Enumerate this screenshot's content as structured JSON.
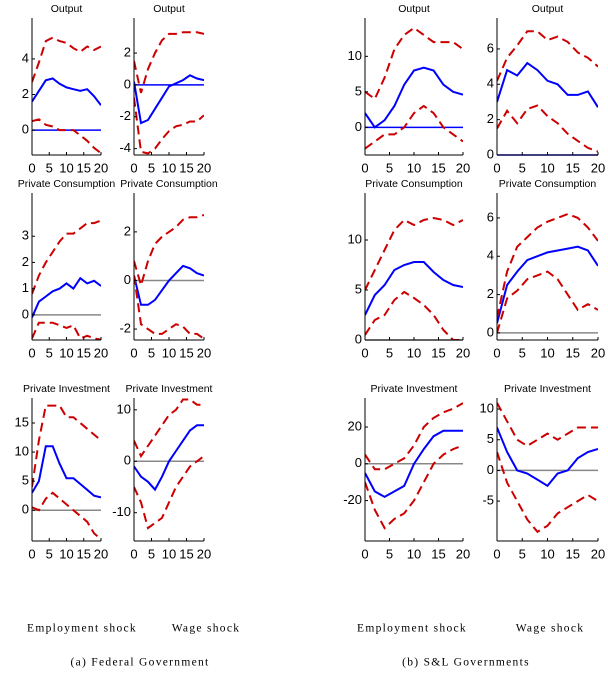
{
  "chart_data": [
    {
      "type": "line",
      "title": "Output",
      "x": [
        0,
        2,
        4,
        6,
        8,
        10,
        12,
        14,
        16,
        18,
        20
      ],
      "xlim": [
        0,
        20
      ],
      "xticks": [
        0,
        5,
        10,
        15,
        20
      ],
      "ylim": [
        -1.4,
        6.3
      ],
      "yticks": [
        0,
        2,
        4
      ],
      "reference_line": {
        "value": 0,
        "color": "#0000ff"
      },
      "series": [
        {
          "color": "#0000ff",
          "values": [
            1.6,
            2.2,
            2.8,
            2.9,
            2.6,
            2.4,
            2.3,
            2.2,
            2.3,
            1.9,
            1.4
          ]
        },
        {
          "color": "#cc0000",
          "dashed": true,
          "values": [
            2.7,
            3.8,
            5.0,
            5.2,
            5.0,
            4.9,
            4.6,
            4.4,
            4.7,
            4.5,
            4.7
          ]
        },
        {
          "color": "#cc0000",
          "dashed": true,
          "values": [
            0.5,
            0.6,
            0.3,
            0.2,
            0.0,
            0.0,
            0.0,
            -0.3,
            -0.6,
            -1.0,
            -1.3
          ]
        }
      ]
    },
    {
      "type": "line",
      "title": "Output",
      "x": [
        0,
        2,
        4,
        6,
        8,
        10,
        12,
        14,
        16,
        18,
        20
      ],
      "xlim": [
        0,
        20
      ],
      "xticks": [
        0,
        5,
        10,
        15,
        20
      ],
      "ylim": [
        -4.4,
        4.2
      ],
      "yticks": [
        -4,
        -2,
        0,
        2
      ],
      "reference_line": {
        "value": 0,
        "color": "#0000ff"
      },
      "series": [
        {
          "color": "#0000ff",
          "values": [
            0.2,
            -2.4,
            -2.2,
            -1.5,
            -0.8,
            -0.1,
            0.1,
            0.3,
            0.6,
            0.4,
            0.3
          ]
        },
        {
          "color": "#cc0000",
          "dashed": true,
          "values": [
            1.5,
            -0.5,
            1.0,
            2.0,
            2.8,
            3.2,
            3.2,
            3.3,
            3.3,
            3.3,
            3.2
          ]
        },
        {
          "color": "#cc0000",
          "dashed": true,
          "values": [
            -0.8,
            -4.2,
            -4.3,
            -4.0,
            -3.4,
            -2.9,
            -2.6,
            -2.5,
            -2.3,
            -2.3,
            -1.9
          ]
        }
      ]
    },
    {
      "type": "line",
      "title": "Private Consumption",
      "x": [
        0,
        2,
        4,
        6,
        8,
        10,
        12,
        14,
        16,
        18,
        20
      ],
      "xlim": [
        0,
        20
      ],
      "xticks": [
        0,
        5,
        10,
        15,
        20
      ],
      "ylim": [
        -0.96,
        4.65
      ],
      "yticks": [
        0,
        1,
        2,
        3
      ],
      "reference_line": {
        "value": 0,
        "color": "#888888"
      },
      "series": [
        {
          "color": "#0000ff",
          "values": [
            -0.1,
            0.5,
            0.7,
            0.9,
            1.0,
            1.2,
            1.0,
            1.4,
            1.2,
            1.3,
            1.1
          ]
        },
        {
          "color": "#cc0000",
          "dashed": true,
          "values": [
            0.8,
            1.5,
            2.0,
            2.4,
            2.8,
            3.1,
            3.1,
            3.3,
            3.5,
            3.5,
            3.6
          ]
        },
        {
          "color": "#cc0000",
          "dashed": true,
          "values": [
            -0.9,
            -0.3,
            -0.3,
            -0.3,
            -0.4,
            -0.5,
            -0.4,
            -0.9,
            -0.8,
            -0.9,
            -0.95
          ]
        }
      ]
    },
    {
      "type": "line",
      "title": "Private Consumption",
      "x": [
        0,
        2,
        4,
        6,
        8,
        10,
        12,
        14,
        16,
        18,
        20
      ],
      "xlim": [
        0,
        20
      ],
      "xticks": [
        0,
        5,
        10,
        15,
        20
      ],
      "ylim": [
        -2.45,
        3.6
      ],
      "yticks": [
        -2,
        0,
        2
      ],
      "reference_line": {
        "value": 0,
        "color": "#888888"
      },
      "series": [
        {
          "color": "#0000ff",
          "values": [
            0.2,
            -1.0,
            -1.0,
            -0.8,
            -0.4,
            0.0,
            0.3,
            0.6,
            0.5,
            0.3,
            0.2
          ]
        },
        {
          "color": "#cc0000",
          "dashed": true,
          "values": [
            0.8,
            -0.2,
            0.8,
            1.5,
            1.8,
            2.0,
            2.2,
            2.5,
            2.6,
            2.6,
            2.7
          ]
        },
        {
          "color": "#cc0000",
          "dashed": true,
          "values": [
            0.2,
            -1.8,
            -2.0,
            -2.2,
            -2.2,
            -2.0,
            -1.8,
            -1.9,
            -2.2,
            -2.2,
            -2.4
          ]
        }
      ]
    },
    {
      "type": "line",
      "title": "Private Investment",
      "x": [
        0,
        2,
        4,
        6,
        8,
        10,
        12,
        14,
        16,
        18,
        20
      ],
      "xlim": [
        0,
        20
      ],
      "xticks": [
        0,
        5,
        10,
        15,
        20
      ],
      "ylim": [
        -5.3,
        19.3
      ],
      "yticks": [
        0,
        5,
        10,
        15
      ],
      "reference_line": {
        "value": 0,
        "color": "#888888"
      },
      "series": [
        {
          "color": "#0000ff",
          "values": [
            3,
            5,
            11,
            11,
            8,
            5.5,
            5.5,
            4.5,
            3.5,
            2.5,
            2.2
          ]
        },
        {
          "color": "#cc0000",
          "dashed": true,
          "values": [
            4,
            12,
            18,
            18,
            18,
            16,
            16,
            15,
            14,
            13,
            12
          ]
        },
        {
          "color": "#cc0000",
          "dashed": true,
          "values": [
            0.5,
            0,
            2,
            3,
            2,
            1,
            0,
            -1,
            -2,
            -4,
            -5
          ]
        }
      ]
    },
    {
      "type": "line",
      "title": "Private Investment",
      "x": [
        0,
        2,
        4,
        6,
        8,
        10,
        12,
        14,
        16,
        18,
        20
      ],
      "xlim": [
        0,
        20
      ],
      "xticks": [
        0,
        5,
        10,
        15,
        20
      ],
      "ylim": [
        -15.5,
        12.3
      ],
      "yticks": [
        -10,
        0,
        10
      ],
      "reference_line": {
        "value": 0,
        "color": "#888888"
      },
      "series": [
        {
          "color": "#0000ff",
          "values": [
            -1,
            -3,
            -4,
            -5.5,
            -3,
            0,
            2,
            4,
            6,
            7,
            7
          ]
        },
        {
          "color": "#cc0000",
          "dashed": true,
          "values": [
            4,
            1,
            3,
            5,
            7,
            9,
            10,
            12,
            12,
            11,
            11
          ]
        },
        {
          "color": "#cc0000",
          "dashed": true,
          "values": [
            -5,
            -8,
            -13,
            -12,
            -11,
            -8,
            -5,
            -3,
            -1,
            0,
            1
          ]
        }
      ]
    },
    {
      "type": "line",
      "title": "Output",
      "x": [
        0,
        2,
        4,
        6,
        8,
        10,
        12,
        14,
        16,
        18,
        20
      ],
      "xlim": [
        0,
        20
      ],
      "xticks": [
        0,
        5,
        10,
        15,
        20
      ],
      "ylim": [
        -3.9,
        15.4
      ],
      "yticks": [
        0,
        5,
        10
      ],
      "reference_line": {
        "value": 0,
        "color": "#0000ff"
      },
      "series": [
        {
          "color": "#0000ff",
          "values": [
            2,
            0,
            1,
            3,
            6,
            8,
            8.4,
            8,
            6,
            5,
            4.6
          ]
        },
        {
          "color": "#cc0000",
          "dashed": true,
          "values": [
            5,
            4,
            7,
            11,
            13,
            14,
            13,
            12,
            12,
            12,
            11
          ]
        },
        {
          "color": "#cc0000",
          "dashed": true,
          "values": [
            -3,
            -2,
            -1,
            -1,
            0,
            2,
            3,
            2,
            0,
            -1,
            -2
          ]
        }
      ]
    },
    {
      "type": "line",
      "title": "Output",
      "x": [
        0,
        2,
        4,
        6,
        8,
        10,
        12,
        14,
        16,
        18,
        20
      ],
      "xlim": [
        0,
        20
      ],
      "xticks": [
        0,
        5,
        10,
        15,
        20
      ],
      "ylim": [
        0,
        7.75
      ],
      "yticks": [
        0,
        2,
        4,
        6
      ],
      "reference_line": {
        "value": 0,
        "color": "#0000ff"
      },
      "series": [
        {
          "color": "#0000ff",
          "values": [
            3.0,
            4.8,
            4.5,
            5.2,
            4.8,
            4.2,
            4.0,
            3.4,
            3.4,
            3.6,
            2.7
          ]
        },
        {
          "color": "#cc0000",
          "dashed": true,
          "values": [
            4.2,
            5.5,
            6.2,
            7.0,
            7.0,
            6.5,
            6.7,
            6.4,
            5.8,
            5.5,
            5.0
          ]
        },
        {
          "color": "#cc0000",
          "dashed": true,
          "values": [
            1.5,
            2.5,
            1.8,
            2.6,
            2.8,
            2.2,
            1.8,
            1.2,
            0.8,
            0.4,
            0.2
          ]
        }
      ]
    },
    {
      "type": "line",
      "title": "Private Consumption",
      "x": [
        0,
        2,
        4,
        6,
        8,
        10,
        12,
        14,
        16,
        18,
        20
      ],
      "xlim": [
        0,
        20
      ],
      "xticks": [
        0,
        5,
        10,
        15,
        20
      ],
      "ylim": [
        0,
        14.7
      ],
      "yticks": [
        0,
        5,
        10
      ],
      "reference_line": {
        "value": 0,
        "color": "#888888"
      },
      "series": [
        {
          "color": "#0000ff",
          "values": [
            2.5,
            4.5,
            5.5,
            7,
            7.5,
            7.8,
            7.8,
            6.8,
            6,
            5.5,
            5.3
          ]
        },
        {
          "color": "#cc0000",
          "dashed": true,
          "values": [
            5,
            7,
            9,
            11,
            12,
            11.5,
            12,
            12.2,
            12,
            11.5,
            12
          ]
        },
        {
          "color": "#cc0000",
          "dashed": true,
          "values": [
            0.5,
            2,
            2.5,
            4,
            4.8,
            4.2,
            3.5,
            2.5,
            1,
            0,
            0
          ]
        }
      ]
    },
    {
      "type": "line",
      "title": "Private Consumption",
      "x": [
        0,
        2,
        4,
        6,
        8,
        10,
        12,
        14,
        16,
        18,
        20
      ],
      "xlim": [
        0,
        20
      ],
      "xticks": [
        0,
        5,
        10,
        15,
        20
      ],
      "ylim": [
        -0.37,
        7.3
      ],
      "yticks": [
        0,
        2,
        4,
        6
      ],
      "reference_line": {
        "value": 0,
        "color": "#888888"
      },
      "series": [
        {
          "color": "#0000ff",
          "values": [
            0.5,
            2.5,
            3.2,
            3.8,
            4,
            4.2,
            4.3,
            4.4,
            4.5,
            4.3,
            3.5
          ]
        },
        {
          "color": "#cc0000",
          "dashed": true,
          "values": [
            0.8,
            3.2,
            4.5,
            5.0,
            5.5,
            5.8,
            6.0,
            6.2,
            6.0,
            5.5,
            4.8
          ]
        },
        {
          "color": "#cc0000",
          "dashed": true,
          "values": [
            0,
            1.8,
            2.2,
            2.8,
            3.0,
            3.2,
            2.8,
            2.0,
            1.2,
            1.5,
            1.2
          ]
        }
      ]
    },
    {
      "type": "line",
      "title": "Private Investment",
      "x": [
        0,
        2,
        4,
        6,
        8,
        10,
        12,
        14,
        16,
        18,
        20
      ],
      "xlim": [
        0,
        20
      ],
      "xticks": [
        0,
        5,
        10,
        15,
        20
      ],
      "ylim": [
        -42,
        35.8
      ],
      "yticks": [
        -20,
        0,
        20
      ],
      "reference_line": {
        "value": 0,
        "color": "#888888"
      },
      "series": [
        {
          "color": "#0000ff",
          "values": [
            -5,
            -15,
            -18,
            -15,
            -12,
            0,
            8,
            15,
            18,
            18,
            18
          ]
        },
        {
          "color": "#cc0000",
          "dashed": true,
          "values": [
            5,
            -3,
            -3,
            0,
            3,
            10,
            20,
            25,
            28,
            30,
            33
          ]
        },
        {
          "color": "#cc0000",
          "dashed": true,
          "values": [
            -10,
            -25,
            -35,
            -30,
            -27,
            -20,
            -10,
            0,
            5,
            8,
            10
          ]
        }
      ]
    },
    {
      "type": "line",
      "title": "Private Investment",
      "x": [
        0,
        2,
        4,
        6,
        8,
        10,
        12,
        14,
        16,
        18,
        20
      ],
      "xlim": [
        0,
        20
      ],
      "xticks": [
        0,
        5,
        10,
        15,
        20
      ],
      "ylim": [
        -11.5,
        11.8
      ],
      "yticks": [
        -5,
        0,
        5,
        10
      ],
      "reference_line": {
        "value": 0,
        "color": "#888888"
      },
      "series": [
        {
          "color": "#0000ff",
          "values": [
            7,
            3,
            0,
            -0.5,
            -1.5,
            -2.5,
            -0.5,
            0,
            2,
            3,
            3.5
          ]
        },
        {
          "color": "#cc0000",
          "dashed": true,
          "values": [
            11,
            8,
            5,
            4,
            5,
            6,
            5,
            6,
            7,
            7,
            7
          ]
        },
        {
          "color": "#cc0000",
          "dashed": true,
          "values": [
            3,
            -2,
            -5,
            -8,
            -10,
            -9,
            -7,
            -6,
            -5,
            -4,
            -5
          ]
        }
      ]
    }
  ],
  "captions": [
    {
      "labels": [
        "Employment shock",
        "Wage shock"
      ],
      "caption": "(a) Federal Government"
    },
    {
      "labels": [
        "Employment shock",
        "Wage shock"
      ],
      "caption": "(b) S&L Governments"
    }
  ]
}
